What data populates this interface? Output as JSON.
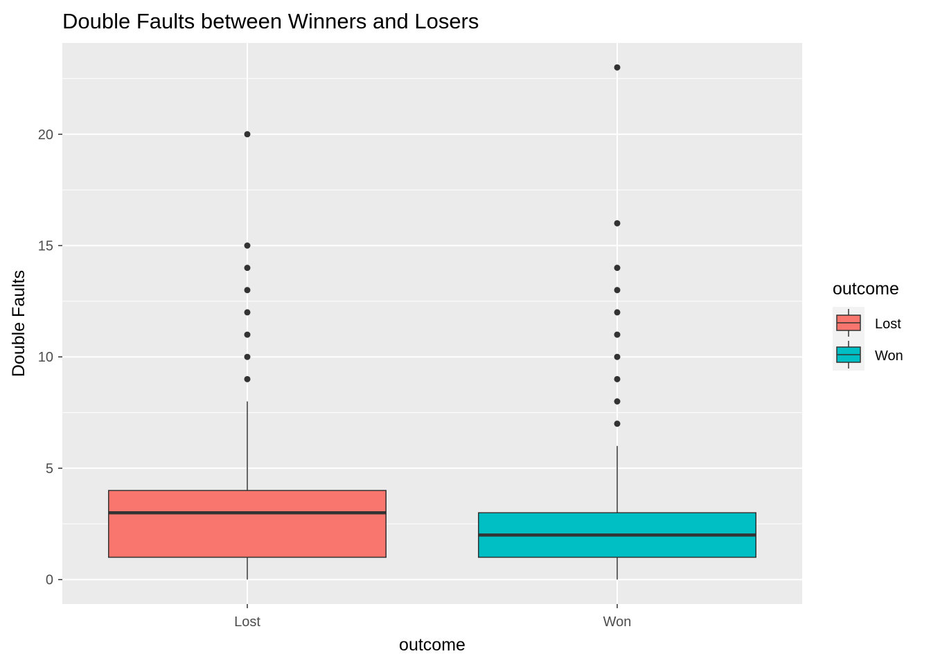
{
  "chart_data": {
    "type": "boxplot",
    "title": "Double Faults between Winners and Losers",
    "xlabel": "outcome",
    "ylabel": "Double Faults",
    "ylim": [
      -1.1,
      24.1
    ],
    "y_ticks": [
      0,
      5,
      10,
      15,
      20
    ],
    "categories": [
      "Lost",
      "Won"
    ],
    "series": [
      {
        "name": "Lost",
        "color": "#F8766D",
        "min": 0,
        "q1": 1,
        "median": 3,
        "q3": 4,
        "max": 8,
        "outliers": [
          9,
          10,
          11,
          12,
          13,
          14,
          15,
          20
        ]
      },
      {
        "name": "Won",
        "color": "#00BFC4",
        "min": 0,
        "q1": 1,
        "median": 2,
        "q3": 3,
        "max": 6,
        "outliers": [
          7,
          8,
          9,
          10,
          11,
          12,
          13,
          14,
          16,
          23
        ]
      }
    ],
    "grid": true,
    "panel_background": "#EBEBEB",
    "legend": {
      "title": "outcome",
      "placement": "right",
      "entries": [
        "Lost",
        "Won"
      ]
    }
  }
}
